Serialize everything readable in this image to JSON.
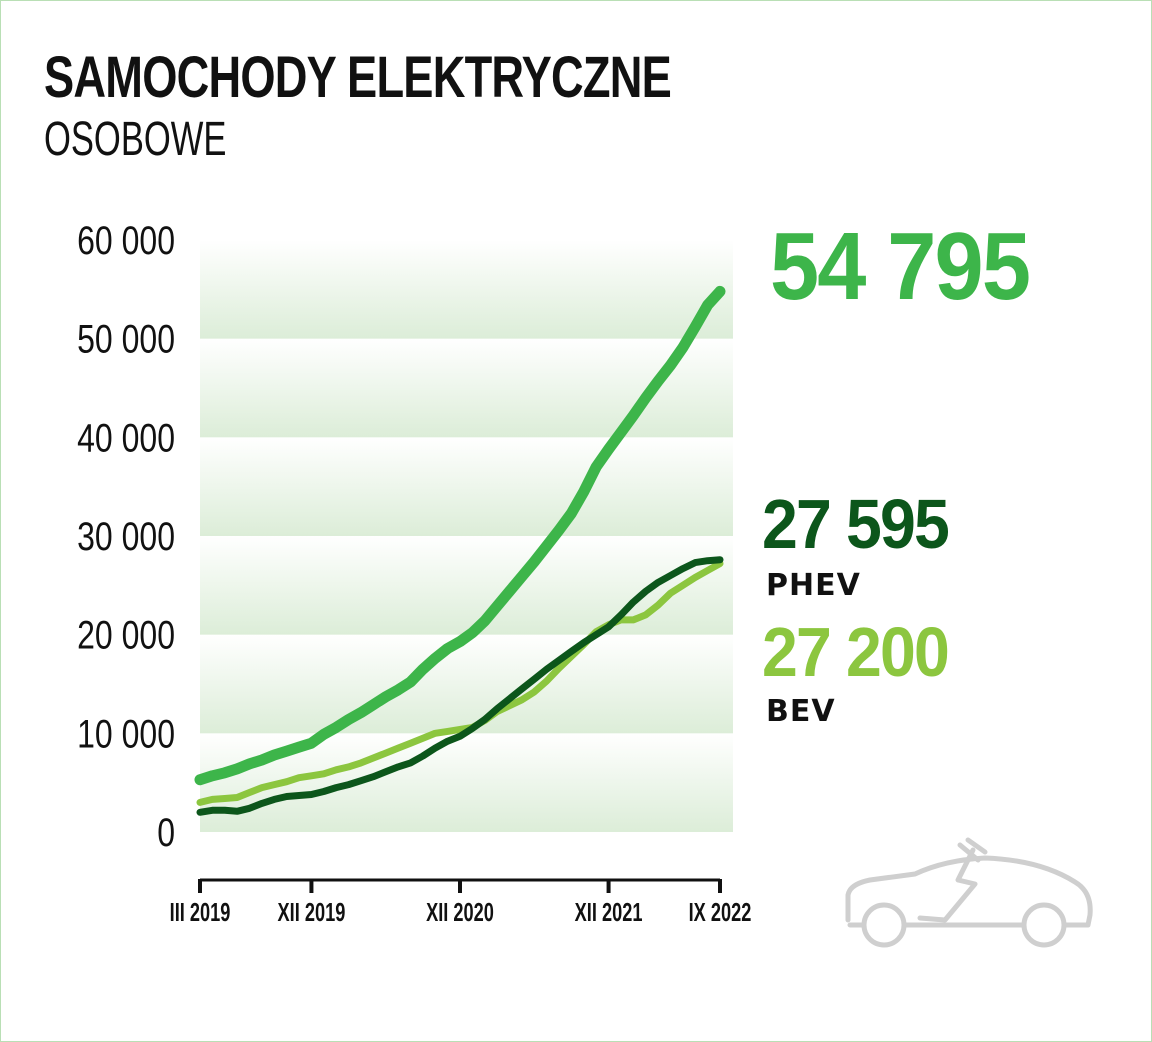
{
  "title": "SAMOCHODY ELEKTRYCZNE",
  "subtitle": "OSOBOWE",
  "totals": {
    "total": "54 795",
    "phev": "27 595",
    "phev_label": "PHEV",
    "bev": "27 200",
    "bev_label": "BEV"
  },
  "icon": "electric-car-icon",
  "chart_data": {
    "type": "line",
    "title": "SAMOCHODY ELEKTRYCZNE OSOBOWE",
    "xlabel": "",
    "ylabel": "",
    "ylim": [
      0,
      60000
    ],
    "yticks": [
      0,
      10000,
      20000,
      30000,
      40000,
      50000,
      60000
    ],
    "ytick_labels": [
      "0",
      "10 000",
      "20 000",
      "30 000",
      "40 000",
      "50 000",
      "60 000"
    ],
    "x_unit": "months since III 2019",
    "xlim": [
      0,
      42
    ],
    "xticks": [
      0,
      9,
      21,
      33,
      42
    ],
    "xtick_labels": [
      "III 2019",
      "XII 2019",
      "XII 2020",
      "XII 2021",
      "IX 2022"
    ],
    "grid": "horizontal bands",
    "series": [
      {
        "name": "Total",
        "color": "#3db54a",
        "values": [
          5300,
          5700,
          6000,
          6400,
          6900,
          7300,
          7800,
          8200,
          8600,
          9000,
          9900,
          10600,
          11400,
          12100,
          12900,
          13700,
          14400,
          15200,
          16500,
          17600,
          18600,
          19300,
          20200,
          21400,
          22900,
          24400,
          25900,
          27400,
          29000,
          30600,
          32300,
          34500,
          37000,
          38800,
          40500,
          42200,
          44000,
          45700,
          47300,
          49100,
          51200,
          53400,
          54795
        ]
      },
      {
        "name": "BEV",
        "color": "#8cc63f",
        "values": [
          3000,
          3300,
          3400,
          3500,
          4000,
          4500,
          4800,
          5100,
          5500,
          5700,
          5900,
          6300,
          6600,
          7000,
          7500,
          8000,
          8500,
          9000,
          9500,
          10000,
          10200,
          10400,
          10600,
          11300,
          12200,
          12800,
          13400,
          14200,
          15300,
          16600,
          17800,
          19000,
          20300,
          21000,
          21500,
          21500,
          22000,
          23000,
          24200,
          25000,
          25800,
          26500,
          27200
        ]
      },
      {
        "name": "PHEV",
        "color": "#0c561b",
        "values": [
          2000,
          2200,
          2200,
          2100,
          2400,
          2900,
          3300,
          3600,
          3700,
          3800,
          4100,
          4500,
          4800,
          5200,
          5600,
          6100,
          6600,
          7000,
          7700,
          8500,
          9200,
          9700,
          10500,
          11400,
          12500,
          13500,
          14500,
          15500,
          16500,
          17400,
          18300,
          19200,
          20000,
          20800,
          22000,
          23300,
          24400,
          25300,
          26000,
          26700,
          27300,
          27500,
          27595
        ]
      }
    ]
  }
}
